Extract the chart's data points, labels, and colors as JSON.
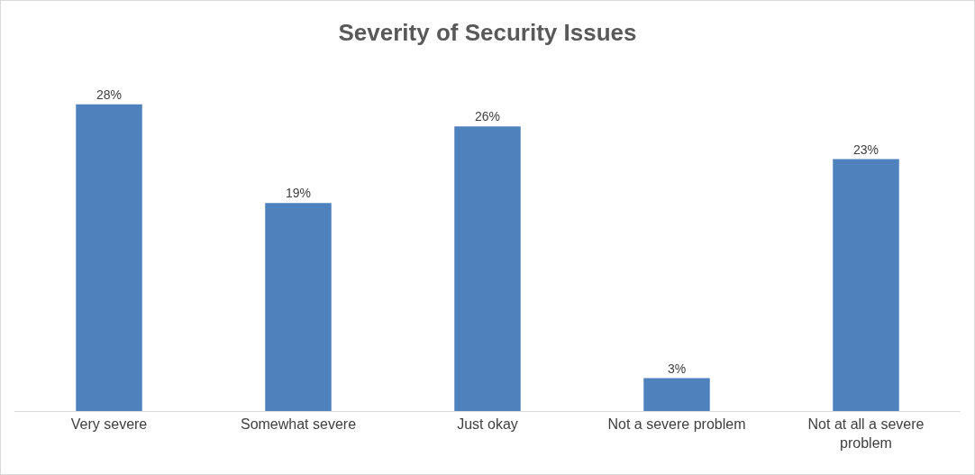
{
  "chart_data": {
    "type": "bar",
    "title": "Severity of Security Issues",
    "categories": [
      "Very severe",
      "Somewhat severe",
      "Just okay",
      "Not a severe problem",
      "Not at all a severe problem"
    ],
    "values": [
      28,
      19,
      26,
      3,
      23
    ],
    "value_labels": [
      "28%",
      "19%",
      "26%",
      "3%",
      "23%"
    ],
    "color": "#4f81bd"
  }
}
